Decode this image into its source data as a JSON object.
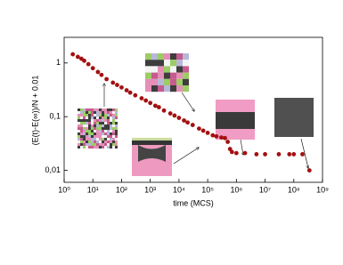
{
  "chart_data": {
    "type": "scatter",
    "x_label": "time (MCS)",
    "y_label": "(E(t)-E(∞))/N + 0.01",
    "log_x": true,
    "log_y": true,
    "grid": false,
    "xlim": [
      1,
      1000000000
    ],
    "ylim": [
      0.006,
      3
    ],
    "xticks": [
      {
        "value": 1,
        "label": "10⁰"
      },
      {
        "value": 10,
        "label": "10¹"
      },
      {
        "value": 100,
        "label": "10²"
      },
      {
        "value": 1000,
        "label": "10³"
      },
      {
        "value": 10000,
        "label": "10⁴"
      },
      {
        "value": 100000,
        "label": "10⁵"
      },
      {
        "value": 1000000,
        "label": "10⁶"
      },
      {
        "value": 10000000,
        "label": "10⁷"
      },
      {
        "value": 100000000,
        "label": "10⁸"
      },
      {
        "value": 1000000000,
        "label": "10⁹"
      }
    ],
    "yticks": [
      {
        "value": 0.01,
        "label": "0,01"
      },
      {
        "value": 0.1,
        "label": "0,1"
      },
      1
    ],
    "color": "#a31010",
    "x": [
      2,
      3,
      4,
      5,
      7,
      10,
      15,
      20,
      30,
      50,
      70,
      100,
      150,
      200,
      300,
      500,
      700,
      1000,
      1500,
      2000,
      3000,
      5000,
      7000,
      10000,
      15000,
      20000,
      30000,
      50000,
      70000,
      100000,
      150000,
      200000,
      300000,
      400000,
      500000,
      600000,
      700000,
      1000000,
      2000000,
      5000000,
      10000000,
      30000000,
      70000000,
      100000000,
      200000000,
      350000000
    ],
    "values": [
      1.45,
      1.3,
      1.2,
      1.1,
      0.95,
      0.8,
      0.68,
      0.6,
      0.5,
      0.43,
      0.39,
      0.35,
      0.31,
      0.28,
      0.25,
      0.22,
      0.2,
      0.18,
      0.16,
      0.15,
      0.13,
      0.115,
      0.105,
      0.095,
      0.085,
      0.078,
      0.07,
      0.06,
      0.055,
      0.05,
      0.045,
      0.043,
      0.041,
      0.04,
      0.034,
      0.025,
      0.022,
      0.021,
      0.021,
      0.02,
      0.02,
      0.02,
      0.02,
      0.02,
      0.02,
      0.01
    ]
  }
}
